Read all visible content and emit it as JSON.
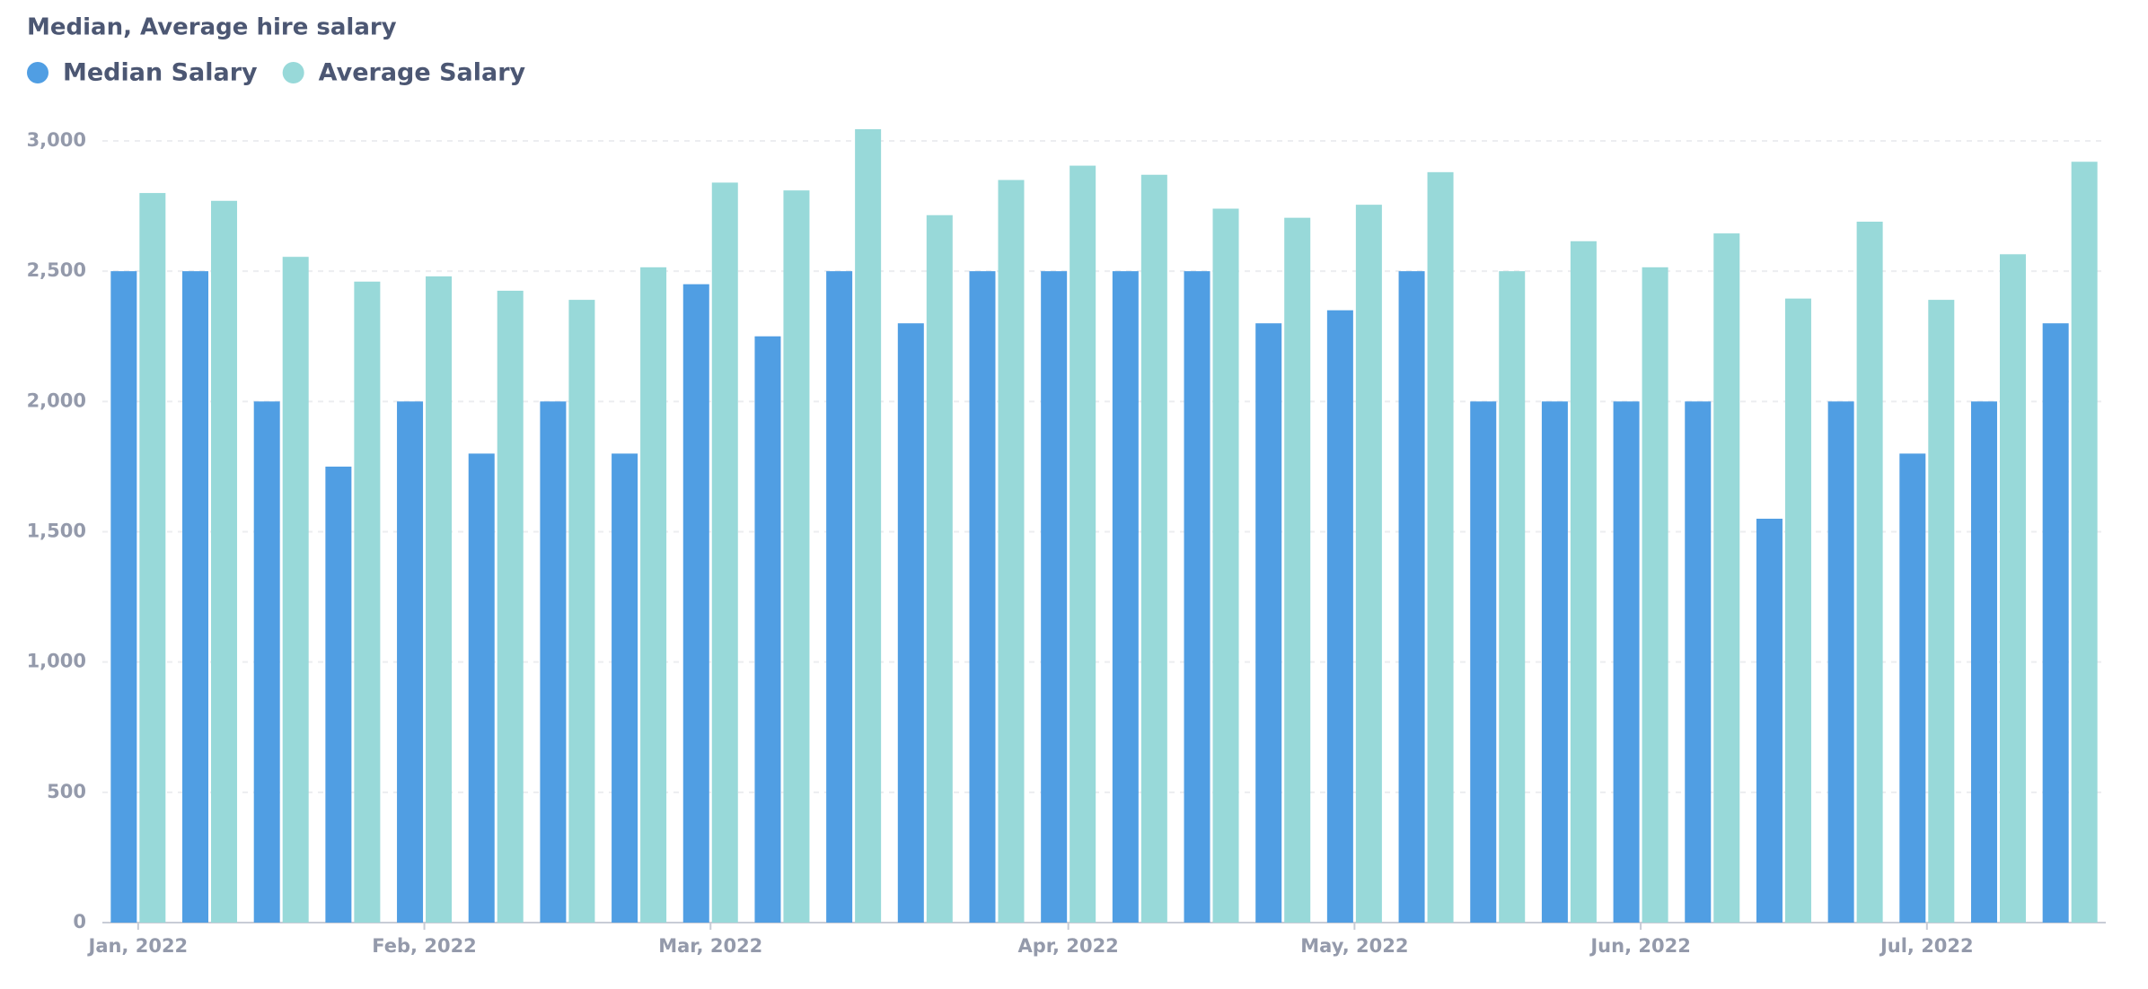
{
  "chart_data": {
    "type": "bar",
    "title": "Median, Average hire salary",
    "categories": [
      "Jan, 2022",
      null,
      null,
      null,
      "Feb, 2022",
      null,
      null,
      null,
      "Mar, 2022",
      null,
      null,
      null,
      null,
      "Apr, 2022",
      null,
      null,
      null,
      "May, 2022",
      null,
      null,
      null,
      "Jun, 2022",
      null,
      null,
      null,
      "Jul, 2022",
      null,
      null
    ],
    "series": [
      {
        "name": "Median Salary",
        "color": "#509ee3",
        "values": [
          2500,
          2500,
          2000,
          1750,
          2000,
          1800,
          2000,
          1800,
          2450,
          2250,
          2500,
          2300,
          2500,
          2500,
          2500,
          2500,
          2300,
          2350,
          2500,
          2000,
          2000,
          2000,
          2000,
          1550,
          2000,
          1800,
          2000,
          2300
        ]
      },
      {
        "name": "Average Salary",
        "color": "#98d9d9",
        "values": [
          2800,
          2770,
          2555,
          2460,
          2480,
          2425,
          2390,
          2515,
          2840,
          2810,
          3045,
          2715,
          2850,
          2905,
          2870,
          2740,
          2705,
          2755,
          2880,
          2500,
          2615,
          2515,
          2645,
          2395,
          2690,
          2390,
          2565,
          2920
        ]
      }
    ],
    "ylim": [
      0,
      3000
    ],
    "yticks": [
      0,
      500,
      {
        "value": 1000,
        "label": "1,000"
      },
      {
        "value": 1500,
        "label": "1,500"
      },
      {
        "value": 2000,
        "label": "2,000"
      },
      {
        "value": 2500,
        "label": "2,500"
      },
      {
        "value": 3000,
        "label": "3,000"
      }
    ],
    "grid": true
  }
}
